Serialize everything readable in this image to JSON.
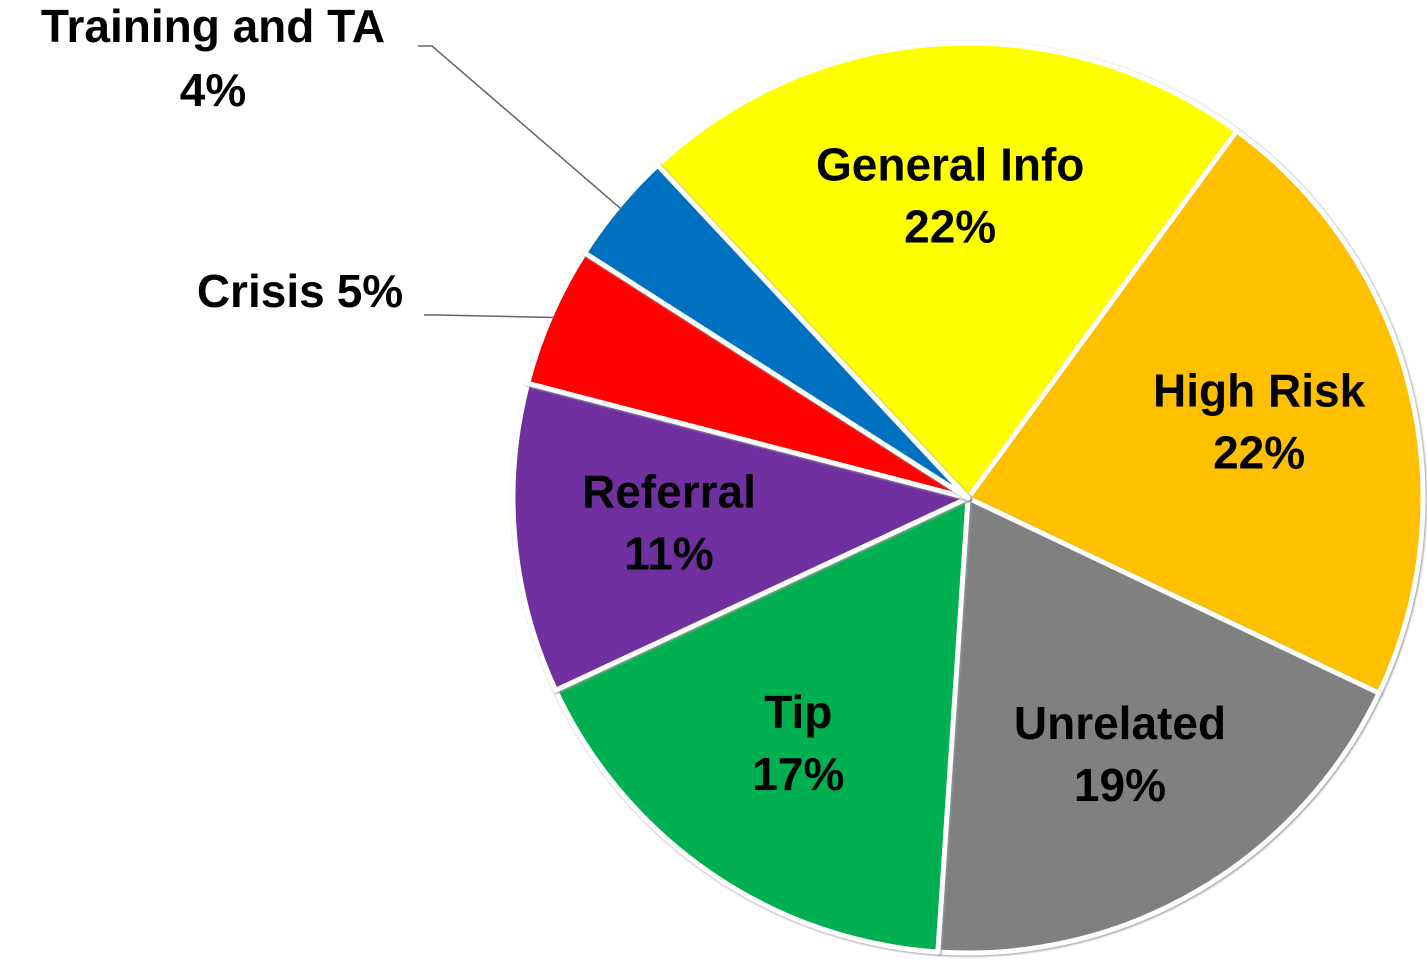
{
  "chart_data": {
    "type": "pie",
    "categories": [
      "General Info",
      "High Risk",
      "Unrelated",
      "Tip",
      "Referral",
      "Crisis",
      "Training and TA"
    ],
    "values": [
      22,
      22,
      19,
      17,
      11,
      5,
      4
    ],
    "value_labels": [
      "22%",
      "22%",
      "19%",
      "17%",
      "11%",
      "5%",
      "4%"
    ],
    "colors": [
      "#ffff00",
      "#ffc000",
      "#808080",
      "#00b050",
      "#7030a0",
      "#ff0000",
      "#0070c0"
    ]
  }
}
